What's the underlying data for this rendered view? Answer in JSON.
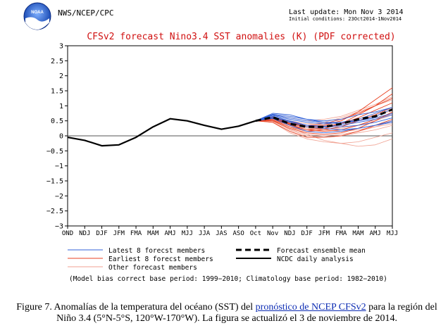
{
  "header": {
    "logo_text": "NOAA",
    "agency": "NWS/NCEP/CPC",
    "last_update": "Last update: Mon Nov 3 2014",
    "initial_conditions": "Initial conditions: 23Oct2014-1Nov2014"
  },
  "caption": {
    "prefix": "Figure 7. Anomalías de la temperatura del océano (SST) del ",
    "link": "pronóstico de NCEP CFSv2",
    "suffix": " para la región del Niño 3.4 (5°N-5°S, 120°W-170°W).  La figura se actualizó el 3 de noviembre de 2014."
  },
  "colors": {
    "title": "#d01010",
    "latest": "#3060d8",
    "earliest": "#e84020",
    "other": "#f0a090",
    "ensemble": "#000000",
    "observed": "#000000"
  },
  "chart_data": {
    "type": "line",
    "title": "CFSv2 forecast Nino3.4 SST anomalies (K) (PDF corrected)",
    "categories": [
      "OND",
      "NDJ",
      "DJF",
      "JFM",
      "FMA",
      "MAM",
      "AMJ",
      "MJJ",
      "JJA",
      "JAS",
      "ASO",
      "Oct",
      "Nov",
      "NDJ",
      "DJF",
      "JFM",
      "FMA",
      "MAM",
      "AMJ",
      "MJJ"
    ],
    "y_ticks": [
      "3",
      "2.5",
      "2",
      "1.5",
      "1",
      "0.5",
      "0",
      "−0.5",
      "−1",
      "−1.5",
      "−2",
      "−2.5",
      "−3"
    ],
    "ylim": [
      -3,
      3
    ],
    "grid": false,
    "observed": {
      "name": "NCDC daily analysis",
      "values": [
        -0.05,
        -0.15,
        -0.33,
        -0.3,
        -0.05,
        0.3,
        0.57,
        0.5,
        0.35,
        0.22,
        0.32,
        0.5,
        null,
        null,
        null,
        null,
        null,
        null,
        null,
        null
      ]
    },
    "ensemble_mean": {
      "name": "Forecast ensemble mean",
      "values": [
        null,
        null,
        null,
        null,
        null,
        null,
        null,
        null,
        null,
        null,
        null,
        0.5,
        0.62,
        0.4,
        0.3,
        0.3,
        0.4,
        0.55,
        0.65,
        0.88
      ]
    },
    "latest": [
      {
        "values": [
          0.5,
          0.75,
          0.7,
          0.55,
          0.45,
          0.4,
          0.5,
          0.65,
          0.9
        ]
      },
      {
        "values": [
          0.5,
          0.7,
          0.6,
          0.5,
          0.45,
          0.45,
          0.55,
          0.75,
          0.95
        ]
      },
      {
        "values": [
          0.5,
          0.65,
          0.5,
          0.35,
          0.3,
          0.3,
          0.35,
          0.45,
          0.6
        ]
      },
      {
        "values": [
          0.5,
          0.6,
          0.45,
          0.3,
          0.25,
          0.2,
          0.25,
          0.35,
          0.5
        ]
      },
      {
        "values": [
          0.5,
          0.68,
          0.55,
          0.45,
          0.4,
          0.45,
          0.5,
          0.6,
          0.75
        ]
      },
      {
        "values": [
          0.5,
          0.58,
          0.35,
          0.15,
          0.1,
          0.15,
          0.25,
          0.35,
          0.45
        ]
      },
      {
        "values": [
          0.5,
          0.72,
          0.65,
          0.55,
          0.5,
          0.55,
          0.7,
          0.8,
          0.95
        ]
      },
      {
        "values": [
          0.5,
          0.63,
          0.48,
          0.35,
          0.32,
          0.35,
          0.45,
          0.55,
          0.7
        ]
      }
    ],
    "earliest": [
      {
        "values": [
          0.5,
          0.6,
          0.4,
          0.3,
          0.35,
          0.5,
          0.8,
          1.2,
          1.6
        ]
      },
      {
        "values": [
          0.5,
          0.55,
          0.35,
          0.2,
          0.25,
          0.4,
          0.7,
          1.0,
          1.4
        ]
      },
      {
        "values": [
          0.5,
          0.62,
          0.45,
          0.35,
          0.4,
          0.55,
          0.75,
          1.0,
          1.25
        ]
      },
      {
        "values": [
          0.5,
          0.5,
          0.25,
          0.1,
          0.05,
          0.1,
          0.25,
          0.5,
          0.8
        ]
      },
      {
        "values": [
          0.5,
          0.58,
          0.38,
          0.2,
          0.15,
          0.2,
          0.35,
          0.55,
          0.75
        ]
      },
      {
        "values": [
          0.5,
          0.45,
          0.15,
          -0.05,
          -0.05,
          0.0,
          0.15,
          0.35,
          0.55
        ]
      },
      {
        "values": [
          0.5,
          0.6,
          0.42,
          0.3,
          0.3,
          0.4,
          0.6,
          0.85,
          1.1
        ]
      },
      {
        "values": [
          0.5,
          0.52,
          0.3,
          0.15,
          0.2,
          0.3,
          0.5,
          0.7,
          0.95
        ]
      }
    ],
    "other": [
      {
        "values": [
          0.5,
          0.55,
          0.3,
          0.05,
          -0.15,
          -0.25,
          -0.35,
          -0.3,
          -0.1
        ]
      },
      {
        "values": [
          0.5,
          0.5,
          0.2,
          0.0,
          -0.05,
          0.0,
          0.1,
          0.2,
          0.35
        ]
      },
      {
        "values": [
          0.5,
          0.65,
          0.5,
          0.4,
          0.45,
          0.6,
          0.8,
          1.0,
          1.2
        ]
      },
      {
        "values": [
          0.5,
          0.6,
          0.45,
          0.3,
          0.2,
          0.15,
          0.2,
          0.3,
          0.4
        ]
      },
      {
        "values": [
          0.5,
          0.48,
          0.22,
          0.05,
          0.0,
          0.05,
          0.15,
          0.3,
          0.5
        ]
      },
      {
        "values": [
          0.5,
          0.7,
          0.6,
          0.5,
          0.55,
          0.65,
          0.85,
          1.05,
          1.3
        ]
      },
      {
        "values": [
          0.5,
          0.55,
          0.35,
          0.25,
          0.2,
          0.25,
          0.35,
          0.5,
          0.7
        ]
      },
      {
        "values": [
          0.5,
          0.45,
          0.1,
          -0.1,
          -0.2,
          -0.25,
          -0.2,
          -0.05,
          0.1
        ]
      },
      {
        "values": [
          0.5,
          0.62,
          0.48,
          0.35,
          0.35,
          0.4,
          0.55,
          0.75,
          0.95
        ]
      },
      {
        "values": [
          0.5,
          0.58,
          0.4,
          0.25,
          0.25,
          0.35,
          0.5,
          0.65,
          0.85
        ]
      }
    ],
    "legend": [
      {
        "key": "latest",
        "label": "Latest 8 forecst members",
        "style": "thin"
      },
      {
        "key": "earliest",
        "label": "Earliest 8 forecst members",
        "style": "thin"
      },
      {
        "key": "other",
        "label": "Other forecast members",
        "style": "thin"
      },
      {
        "key": "ensemble",
        "label": "Forecast ensemble mean",
        "style": "dashed"
      },
      {
        "key": "observed",
        "label": "NCDC daily analysis",
        "style": "solid"
      }
    ],
    "note": "(Model bias correct base period: 1999−2010; Climatology base period: 1982−2010)"
  }
}
